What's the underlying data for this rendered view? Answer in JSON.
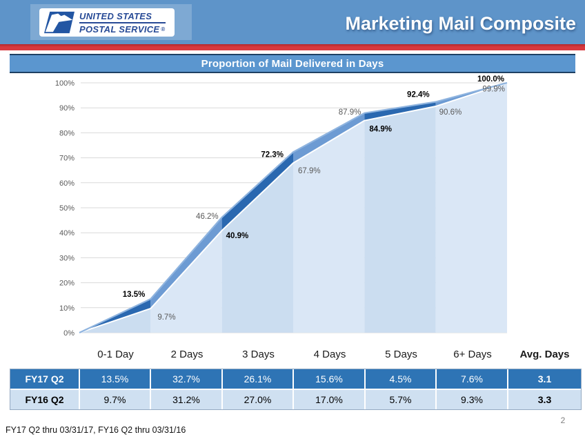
{
  "header": {
    "brand_line1": "UNITED STATES",
    "brand_line2": "POSTAL SERVICE",
    "registered": "®",
    "title": "Marketing Mail Composite"
  },
  "chart_data": {
    "type": "area",
    "title": "Proportion of Mail Delivered in Days",
    "categories": [
      "0-1 Day",
      "2 Days",
      "3 Days",
      "4 Days",
      "5 Days",
      "6+ Days"
    ],
    "series": [
      {
        "name": "FY17 Q2",
        "cumulative_pct": [
          13.5,
          46.2,
          72.3,
          87.9,
          92.4,
          100.0
        ],
        "point_labels": [
          "13.5%",
          "46.2%",
          "72.3%",
          "87.9%",
          "92.4%",
          "100.0%"
        ]
      },
      {
        "name": "FY16 Q2",
        "cumulative_pct": [
          9.7,
          40.9,
          67.9,
          84.9,
          90.6,
          99.9
        ],
        "point_labels": [
          "9.7%",
          "40.9%",
          "67.9%",
          "84.9%",
          "90.6%",
          "99.9%"
        ]
      }
    ],
    "xlabel": "",
    "ylabel": "",
    "ylim": [
      0,
      100
    ],
    "yticks": [
      "0%",
      "10%",
      "20%",
      "30%",
      "40%",
      "50%",
      "60%",
      "70%",
      "80%",
      "90%",
      "100%"
    ],
    "grid": true,
    "legend": false,
    "starts_at_zero_origin": true
  },
  "table": {
    "columns": [
      "0-1 Day",
      "2 Days",
      "3 Days",
      "4 Days",
      "5 Days",
      "6+ Days",
      "Avg. Days"
    ],
    "rows": [
      {
        "label": "FY17 Q2",
        "values": [
          "13.5%",
          "32.7%",
          "26.1%",
          "15.6%",
          "4.5%",
          "7.6%"
        ],
        "avg": "3.1"
      },
      {
        "label": "FY16 Q2",
        "values": [
          "9.7%",
          "31.2%",
          "27.0%",
          "17.0%",
          "5.7%",
          "9.3%"
        ],
        "avg": "3.3"
      }
    ]
  },
  "footer": {
    "note": "FY17 Q2 thru 03/31/17, FY16 Q2 thru 03/31/16",
    "page": "2"
  },
  "colors": {
    "banner_blue": "#5E94C9",
    "red_stripe": "#D8393E",
    "title_bar_blue": "#5B96CF",
    "title_bar_border": "#1E4063",
    "band_dark": "#2A68B0",
    "band_medium": "#6D9BD3",
    "area_dark": "#CBDDF0",
    "area_light": "#DAE7F6",
    "line_top": "#8FB4DF",
    "line_bottom": "#FFFFFF",
    "grid_gray": "#D9D9D9",
    "axis_text": "#595959",
    "table_row1_bg": "#2E74B5",
    "table_row2_bg": "#CFE0F1",
    "logo_navy": "#274A96"
  }
}
